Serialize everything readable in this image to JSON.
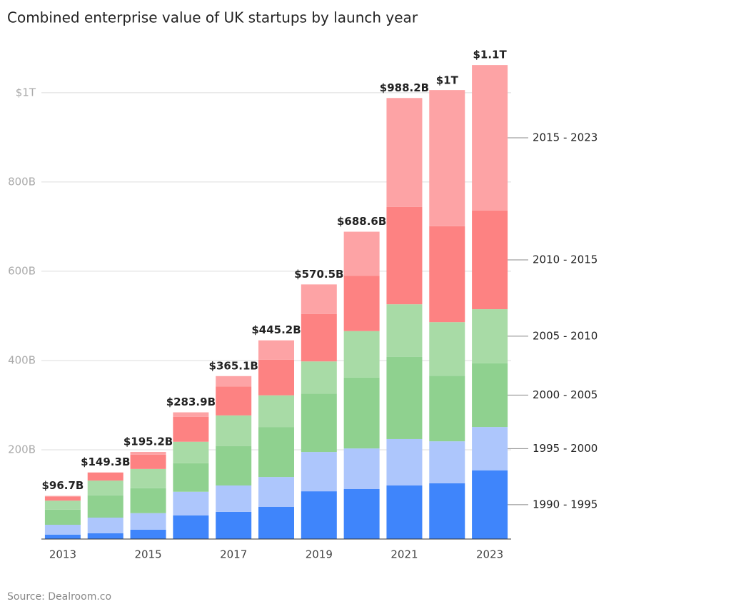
{
  "chart_data": {
    "type": "stacked_bar",
    "title": "Combined enterprise value of UK startups by launch year",
    "source": "Source: Dealroom.co",
    "categories": [
      "2013",
      null,
      "2015",
      null,
      "2017",
      null,
      "2019",
      null,
      "2021",
      null,
      "2023"
    ],
    "series": [
      {
        "name": "1990 - 1995",
        "color": "#3f85fb",
        "values": [
          10,
          13,
          21,
          53,
          61,
          72,
          107,
          112,
          120,
          125,
          154
        ]
      },
      {
        "name": "1995 - 2000",
        "color": "#adc6fc",
        "values": [
          22,
          35,
          37,
          53,
          59,
          67,
          88,
          91,
          104,
          94,
          97
        ]
      },
      {
        "name": "2000 - 2005",
        "color": "#8fd18f",
        "values": [
          34,
          50,
          56,
          64,
          88,
          112,
          131,
          159,
          184,
          147,
          143
        ]
      },
      {
        "name": "2005 - 2010",
        "color": "#a8dba6",
        "values": [
          20,
          33,
          43,
          48,
          69,
          71,
          72,
          104,
          118,
          120,
          121
        ]
      },
      {
        "name": "2010 - 2015",
        "color": "#fd8282",
        "values": [
          9,
          18,
          32,
          56,
          65,
          80,
          106,
          124,
          218,
          215,
          221
        ]
      },
      {
        "name": "2015 - 2023",
        "color": "#fda3a5",
        "values": [
          1.7,
          0.3,
          6.2,
          9.9,
          23.1,
          43.2,
          66.5,
          98.6,
          244.2,
          305,
          326
        ]
      }
    ],
    "totals": {
      "values": [
        96.7,
        149.3,
        195.2,
        283.9,
        365.1,
        445.2,
        570.5,
        688.6,
        988.2,
        1005,
        1062
      ],
      "value_labels": [
        "$96.7B",
        "$149.3B",
        "$195.2B",
        "$283.9B",
        "$365.1B",
        "$445.2B",
        "$570.5B",
        "$688.6B",
        "$988.2B",
        "$1T",
        "$1.1T"
      ]
    },
    "ylim": [
      0,
      1075
    ],
    "yticks": [
      {
        "value": 200,
        "label": "200B"
      },
      {
        "value": 400,
        "label": "400B"
      },
      {
        "value": 600,
        "label": "600B"
      },
      {
        "value": 800,
        "label": "800B"
      },
      {
        "value": 1000,
        "label": "$1T"
      }
    ],
    "grid": true,
    "legend": "right"
  }
}
